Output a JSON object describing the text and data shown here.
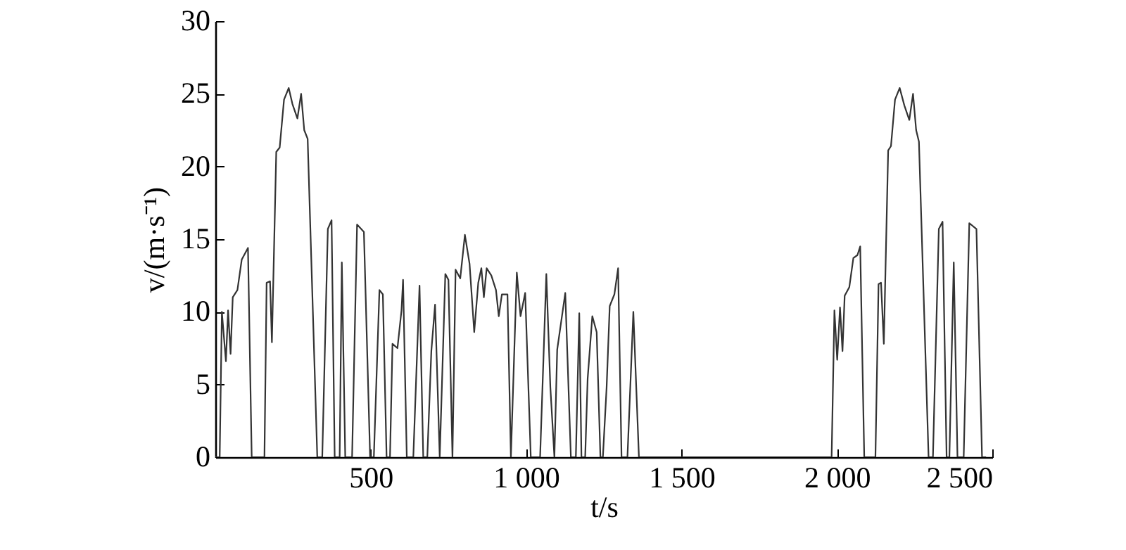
{
  "chart_data": {
    "type": "line",
    "xlabel": "t/s",
    "ylabel": "v/(m·s⁻¹)",
    "xlim": [
      0,
      2500
    ],
    "ylim": [
      0,
      30
    ],
    "xticks": [
      500,
      {
        "value": 1000,
        "label": "1 000"
      },
      {
        "value": 1500,
        "label": "1 500"
      },
      {
        "value": 2000,
        "label": "2 000"
      },
      {
        "value": 2500,
        "label": "2 500"
      }
    ],
    "yticks": [
      0,
      5,
      10,
      15,
      20,
      25,
      30
    ],
    "series": [
      {
        "color": "#333333",
        "x": [
          0,
          14,
          21,
          34,
          41,
          49,
          56,
          71,
          85,
          105,
          117,
          158,
          165,
          176,
          182,
          196,
          207,
          221,
          236,
          248,
          264,
          276,
          286,
          297,
          328,
          344,
          362,
          374,
          384,
          400,
          407,
          418,
          440,
          456,
          478,
          498,
          510,
          528,
          539,
          551,
          562,
          570,
          586,
          599,
          604,
          616,
          637,
          657,
          669,
          682,
          695,
          707,
          722,
          740,
          750,
          763,
          773,
          788,
          803,
          818,
          833,
          846,
          856,
          864,
          873,
          888,
          903,
          912,
          922,
          940,
          951,
          970,
          982,
          997,
          1015,
          1045,
          1065,
          1078,
          1091,
          1100,
          1126,
          1144,
          1160,
          1171,
          1178,
          1190,
          1198,
          1213,
          1227,
          1239,
          1247,
          1259,
          1269,
          1284,
          1296,
          1307,
          1326,
          1345,
          1363,
          1983,
          1992,
          2001,
          2010,
          2018,
          2025,
          2040,
          2053,
          2066,
          2075,
          2088,
          2124,
          2134,
          2142,
          2151,
          2165,
          2174,
          2187,
          2202,
          2217,
          2233,
          2245,
          2255,
          2264,
          2295,
          2309,
          2328,
          2340,
          2353,
          2362,
          2376,
          2388,
          2408,
          2426,
          2449,
          2467,
          2480
        ],
        "values": [
          0,
          0,
          10,
          6.6,
          10.1,
          7.1,
          11,
          11.5,
          13.6,
          14.4,
          0,
          0,
          12,
          12.1,
          7.9,
          21,
          21.3,
          24.6,
          25.4,
          24.3,
          23.3,
          25,
          22.5,
          21.9,
          0,
          0,
          15.7,
          16.3,
          0,
          0,
          13.4,
          0,
          0,
          16,
          15.5,
          0,
          0,
          11.5,
          11.2,
          0,
          0,
          7.8,
          7.5,
          10.1,
          12.2,
          0,
          0,
          11.8,
          0,
          0,
          7.3,
          10.5,
          0,
          12.6,
          12.2,
          0,
          12.9,
          12.3,
          15.3,
          13.3,
          8.6,
          12,
          13,
          11,
          13,
          12.5,
          11.5,
          9.7,
          11.2,
          11.2,
          0,
          12.7,
          9.7,
          11.3,
          0,
          0,
          12.6,
          4.8,
          0,
          7.4,
          11.3,
          0,
          0,
          9.9,
          0,
          0,
          5.4,
          9.7,
          8.6,
          0,
          0,
          4.8,
          10.4,
          11.2,
          13,
          0,
          0,
          10,
          0,
          0,
          10.1,
          6.7,
          10.3,
          7.3,
          11.1,
          11.7,
          13.7,
          13.9,
          14.5,
          0,
          0,
          11.9,
          12,
          7.8,
          21.1,
          21.4,
          24.6,
          25.4,
          24.2,
          23.2,
          25,
          22.5,
          21.7,
          0,
          0,
          15.7,
          16.2,
          0,
          0,
          13.4,
          0,
          0,
          16.1,
          15.7,
          0,
          0
        ]
      }
    ]
  }
}
